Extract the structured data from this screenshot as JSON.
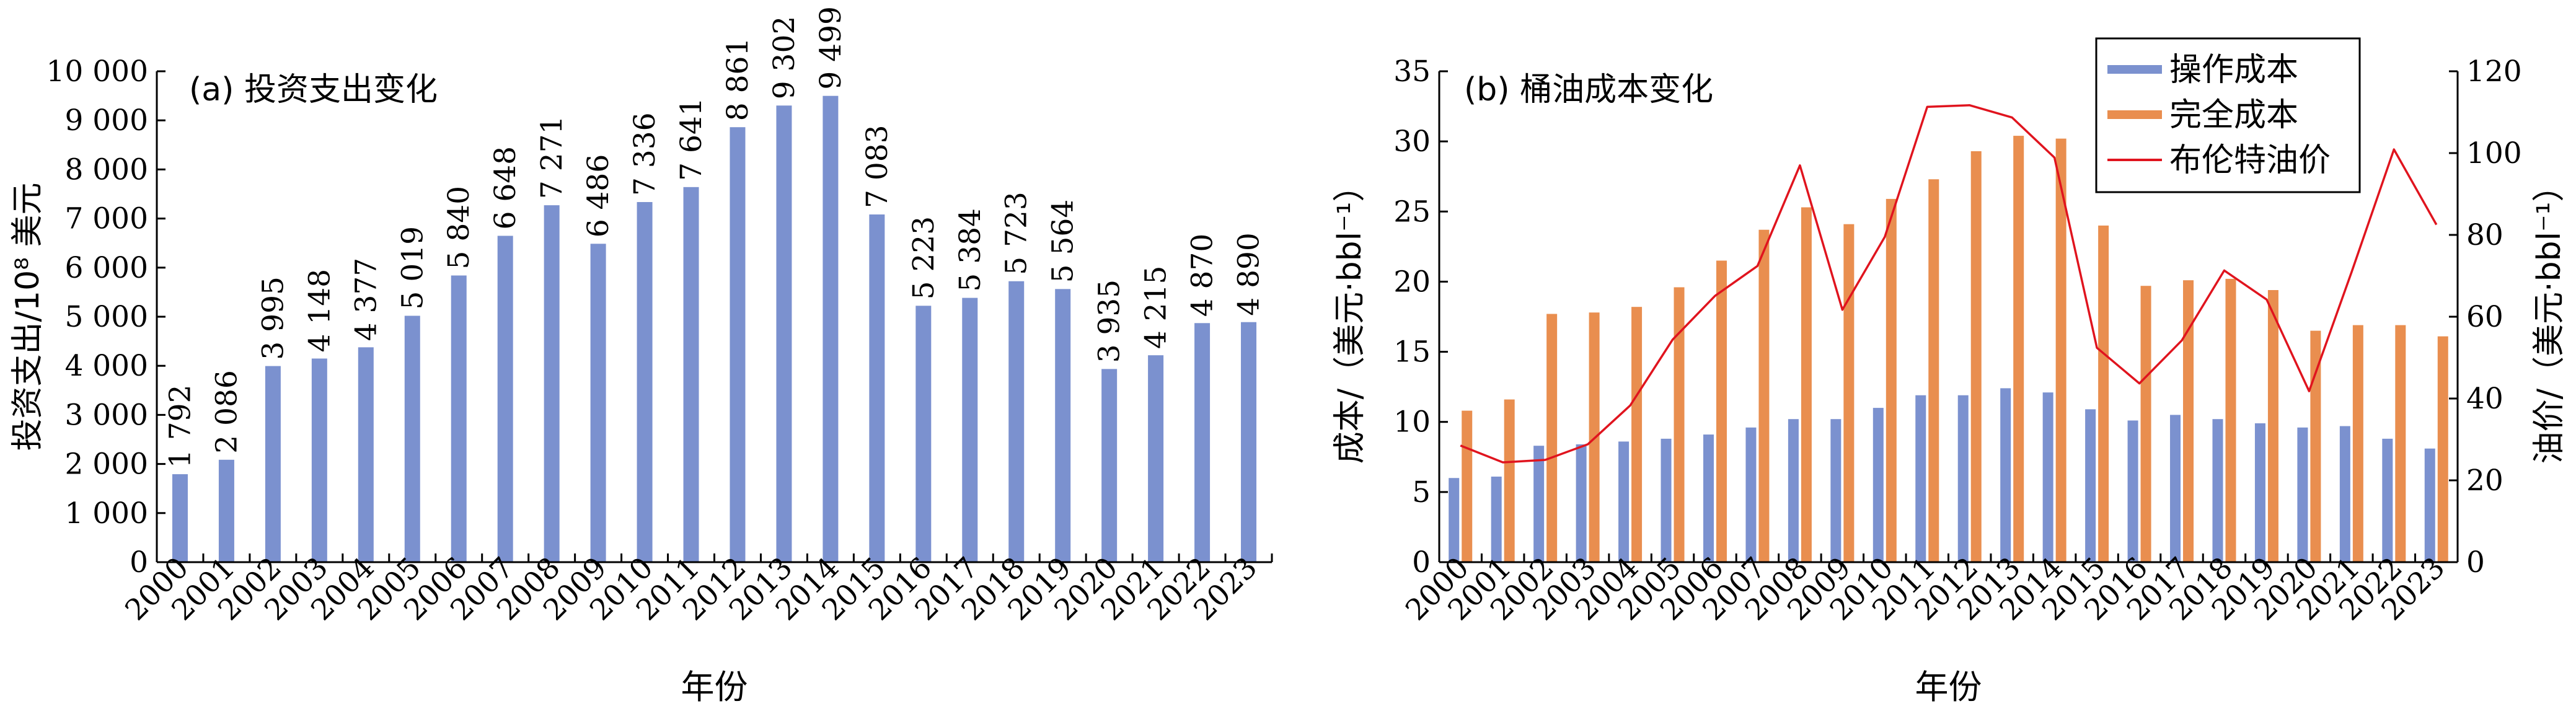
{
  "chart_data": [
    {
      "type": "bar",
      "title": "(a) 投资支出变化",
      "xlabel": "年份",
      "ylabel": "投资支出/10⁸ 美元",
      "ylim": [
        0,
        10000
      ],
      "yticks": [
        0,
        1000,
        2000,
        3000,
        4000,
        5000,
        6000,
        7000,
        8000,
        9000,
        10000
      ],
      "ytick_labels": [
        "0",
        "1 000",
        "2 000",
        "3 000",
        "4 000",
        "5 000",
        "6 000",
        "7 000",
        "8 000",
        "9 000",
        "10 000"
      ],
      "categories": [
        "2000",
        "2001",
        "2002",
        "2003",
        "2004",
        "2005",
        "2006",
        "2007",
        "2008",
        "2009",
        "2010",
        "2011",
        "2012",
        "2013",
        "2014",
        "2015",
        "2016",
        "2017",
        "2018",
        "2019",
        "2020",
        "2021",
        "2022",
        "2023"
      ],
      "values": [
        1792,
        2086,
        3995,
        4148,
        4377,
        5019,
        5840,
        6648,
        7271,
        6486,
        7336,
        7641,
        8861,
        9302,
        9499,
        7083,
        5223,
        5384,
        5723,
        5564,
        3935,
        4215,
        4870,
        4890
      ],
      "data_labels": [
        "1 792",
        "2 086",
        "3 995",
        "4 148",
        "4 377",
        "5 019",
        "5 840",
        "6 648",
        "7 271",
        "6 486",
        "7 336",
        "7 641",
        "8 861",
        "9 302",
        "9 499",
        "7 083",
        "5 223",
        "5 384",
        "5 723",
        "5 564",
        "3 935",
        "4 215",
        "4 870",
        "4 890"
      ],
      "color": "#7b91cf",
      "grid": false
    },
    {
      "type": "bar",
      "title": "(b) 桶油成本变化",
      "xlabel": "年份",
      "ylabel": "成本/（美元·bbl⁻¹）",
      "ylim": [
        0,
        35
      ],
      "yticks": [
        0,
        5,
        10,
        15,
        20,
        25,
        30,
        35
      ],
      "ytick_labels": [
        "0",
        "5",
        "10",
        "15",
        "20",
        "25",
        "30",
        "35"
      ],
      "ylabel_right": "油价/（美元·bbl⁻¹）",
      "ylim_right": [
        0,
        120
      ],
      "yticks_right": [
        0,
        20,
        40,
        60,
        80,
        100,
        120
      ],
      "ytick_labels_right": [
        "0",
        "20",
        "40",
        "60",
        "80",
        "100",
        "120"
      ],
      "categories": [
        "2000",
        "2001",
        "2002",
        "2003",
        "2004",
        "2005",
        "2006",
        "2007",
        "2008",
        "2009",
        "2010",
        "2011",
        "2012",
        "2013",
        "2014",
        "2015",
        "2016",
        "2017",
        "2018",
        "2019",
        "2020",
        "2021",
        "2022",
        "2023"
      ],
      "legend_position": "top-right",
      "grid": false,
      "series": [
        {
          "name": "操作成本",
          "kind": "bar",
          "axis": "left",
          "color": "#7b91cf",
          "values": [
            6.0,
            6.1,
            8.3,
            8.4,
            8.6,
            8.8,
            9.1,
            9.6,
            10.2,
            10.2,
            11.0,
            11.9,
            11.9,
            12.4,
            12.1,
            10.9,
            10.1,
            10.5,
            10.2,
            9.9,
            9.6,
            9.7,
            8.8,
            8.1
          ]
        },
        {
          "name": "完全成本",
          "kind": "bar",
          "axis": "left",
          "color": "#e98e4f",
          "values": [
            10.8,
            11.6,
            17.7,
            17.8,
            18.2,
            19.6,
            21.5,
            23.7,
            25.3,
            24.1,
            25.9,
            27.3,
            29.3,
            30.4,
            30.2,
            24.0,
            19.7,
            20.1,
            20.2,
            19.4,
            16.5,
            16.9,
            16.9,
            16.1
          ]
        },
        {
          "name": "布伦特油价",
          "kind": "line",
          "axis": "right",
          "color": "#e0141e",
          "values": [
            28.5,
            24.4,
            25.0,
            28.8,
            38.3,
            54.4,
            65.1,
            72.4,
            97.0,
            61.7,
            79.5,
            111.3,
            111.7,
            108.7,
            98.9,
            52.4,
            43.7,
            54.2,
            71.3,
            64.2,
            41.8,
            70.9,
            100.9,
            82.5
          ]
        }
      ]
    }
  ]
}
